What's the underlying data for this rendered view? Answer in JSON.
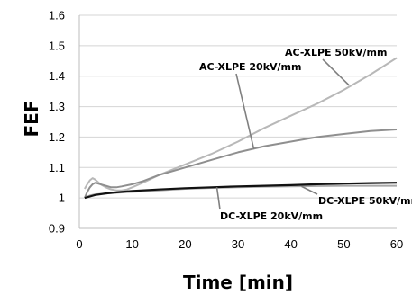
{
  "chart_data": {
    "type": "line",
    "title": "",
    "xlabel": "Time [min]",
    "ylabel": "FEF",
    "xlim": [
      0,
      60
    ],
    "ylim": [
      0.9,
      1.6
    ],
    "x_ticks": [
      "0",
      "10",
      "20",
      "30",
      "40",
      "50",
      "60"
    ],
    "y_ticks": [
      "0.9",
      "1",
      "1.1",
      "1.2",
      "1.3",
      "1.4",
      "1.5",
      "1.6"
    ],
    "grid": "horizontal",
    "legend": "none (series labelled by annotations with pointer lines)",
    "series": [
      {
        "name": "AC-XLPE 50kV/mm",
        "color": "#b8b8b8",
        "points": [
          [
            1,
            1.03
          ],
          [
            1.5,
            1.045
          ],
          [
            2,
            1.058
          ],
          [
            2.5,
            1.065
          ],
          [
            3,
            1.06
          ],
          [
            4,
            1.045
          ],
          [
            5,
            1.035
          ],
          [
            6,
            1.028
          ],
          [
            7,
            1.025
          ],
          [
            8,
            1.025
          ],
          [
            9,
            1.028
          ],
          [
            10,
            1.035
          ],
          [
            12,
            1.05
          ],
          [
            15,
            1.075
          ],
          [
            20,
            1.11
          ],
          [
            25,
            1.145
          ],
          [
            30,
            1.185
          ],
          [
            35,
            1.23
          ],
          [
            40,
            1.27
          ],
          [
            45,
            1.31
          ],
          [
            50,
            1.355
          ],
          [
            55,
            1.405
          ],
          [
            60,
            1.46
          ]
        ]
      },
      {
        "name": "AC-XLPE 20kV/mm",
        "color": "#8f8f8f",
        "points": [
          [
            1,
            1.0
          ],
          [
            1.5,
            1.02
          ],
          [
            2,
            1.035
          ],
          [
            2.5,
            1.045
          ],
          [
            3,
            1.05
          ],
          [
            4,
            1.045
          ],
          [
            5,
            1.04
          ],
          [
            6,
            1.035
          ],
          [
            7,
            1.035
          ],
          [
            8,
            1.038
          ],
          [
            10,
            1.045
          ],
          [
            12,
            1.055
          ],
          [
            15,
            1.075
          ],
          [
            20,
            1.1
          ],
          [
            25,
            1.125
          ],
          [
            30,
            1.15
          ],
          [
            35,
            1.17
          ],
          [
            40,
            1.185
          ],
          [
            45,
            1.2
          ],
          [
            50,
            1.21
          ],
          [
            55,
            1.22
          ],
          [
            60,
            1.225
          ]
        ]
      },
      {
        "name": "DC-XLPE 20kV/mm",
        "color": "#111111",
        "points": [
          [
            1,
            1.0
          ],
          [
            2,
            1.005
          ],
          [
            3,
            1.01
          ],
          [
            5,
            1.015
          ],
          [
            8,
            1.02
          ],
          [
            10,
            1.023
          ],
          [
            15,
            1.028
          ],
          [
            20,
            1.032
          ],
          [
            25,
            1.035
          ],
          [
            30,
            1.038
          ],
          [
            35,
            1.04
          ],
          [
            40,
            1.042
          ],
          [
            45,
            1.045
          ],
          [
            50,
            1.047
          ],
          [
            55,
            1.049
          ],
          [
            60,
            1.05
          ]
        ]
      },
      {
        "name": "DC-XLPE 50kV/mm",
        "color": "#a8a8a8",
        "points": [
          [
            1,
            1.0
          ],
          [
            2,
            1.008
          ],
          [
            3,
            1.012
          ],
          [
            5,
            1.015
          ],
          [
            8,
            1.018
          ],
          [
            10,
            1.02
          ],
          [
            15,
            1.025
          ],
          [
            20,
            1.03
          ],
          [
            25,
            1.033
          ],
          [
            30,
            1.035
          ],
          [
            35,
            1.037
          ],
          [
            40,
            1.038
          ],
          [
            45,
            1.039
          ],
          [
            50,
            1.04
          ],
          [
            55,
            1.04
          ],
          [
            60,
            1.04
          ]
        ]
      }
    ],
    "annotations": [
      {
        "text": "AC-XLPE 50kV/mm",
        "target_series": "AC-XLPE 50kV/mm",
        "pointer_x": 51,
        "pointer_y": 1.37
      },
      {
        "text": "AC-XLPE 20kV/mm",
        "target_series": "AC-XLPE 20kV/mm",
        "pointer_x": 33,
        "pointer_y": 1.16
      },
      {
        "text": "DC-XLPE 50kV/mm",
        "target_series": "DC-XLPE 50kV/mm",
        "pointer_x": 42,
        "pointer_y": 1.038
      },
      {
        "text": "DC-XLPE 20kV/mm",
        "target_series": "DC-XLPE 20kV/mm",
        "pointer_x": 26,
        "pointer_y": 1.035
      }
    ]
  }
}
